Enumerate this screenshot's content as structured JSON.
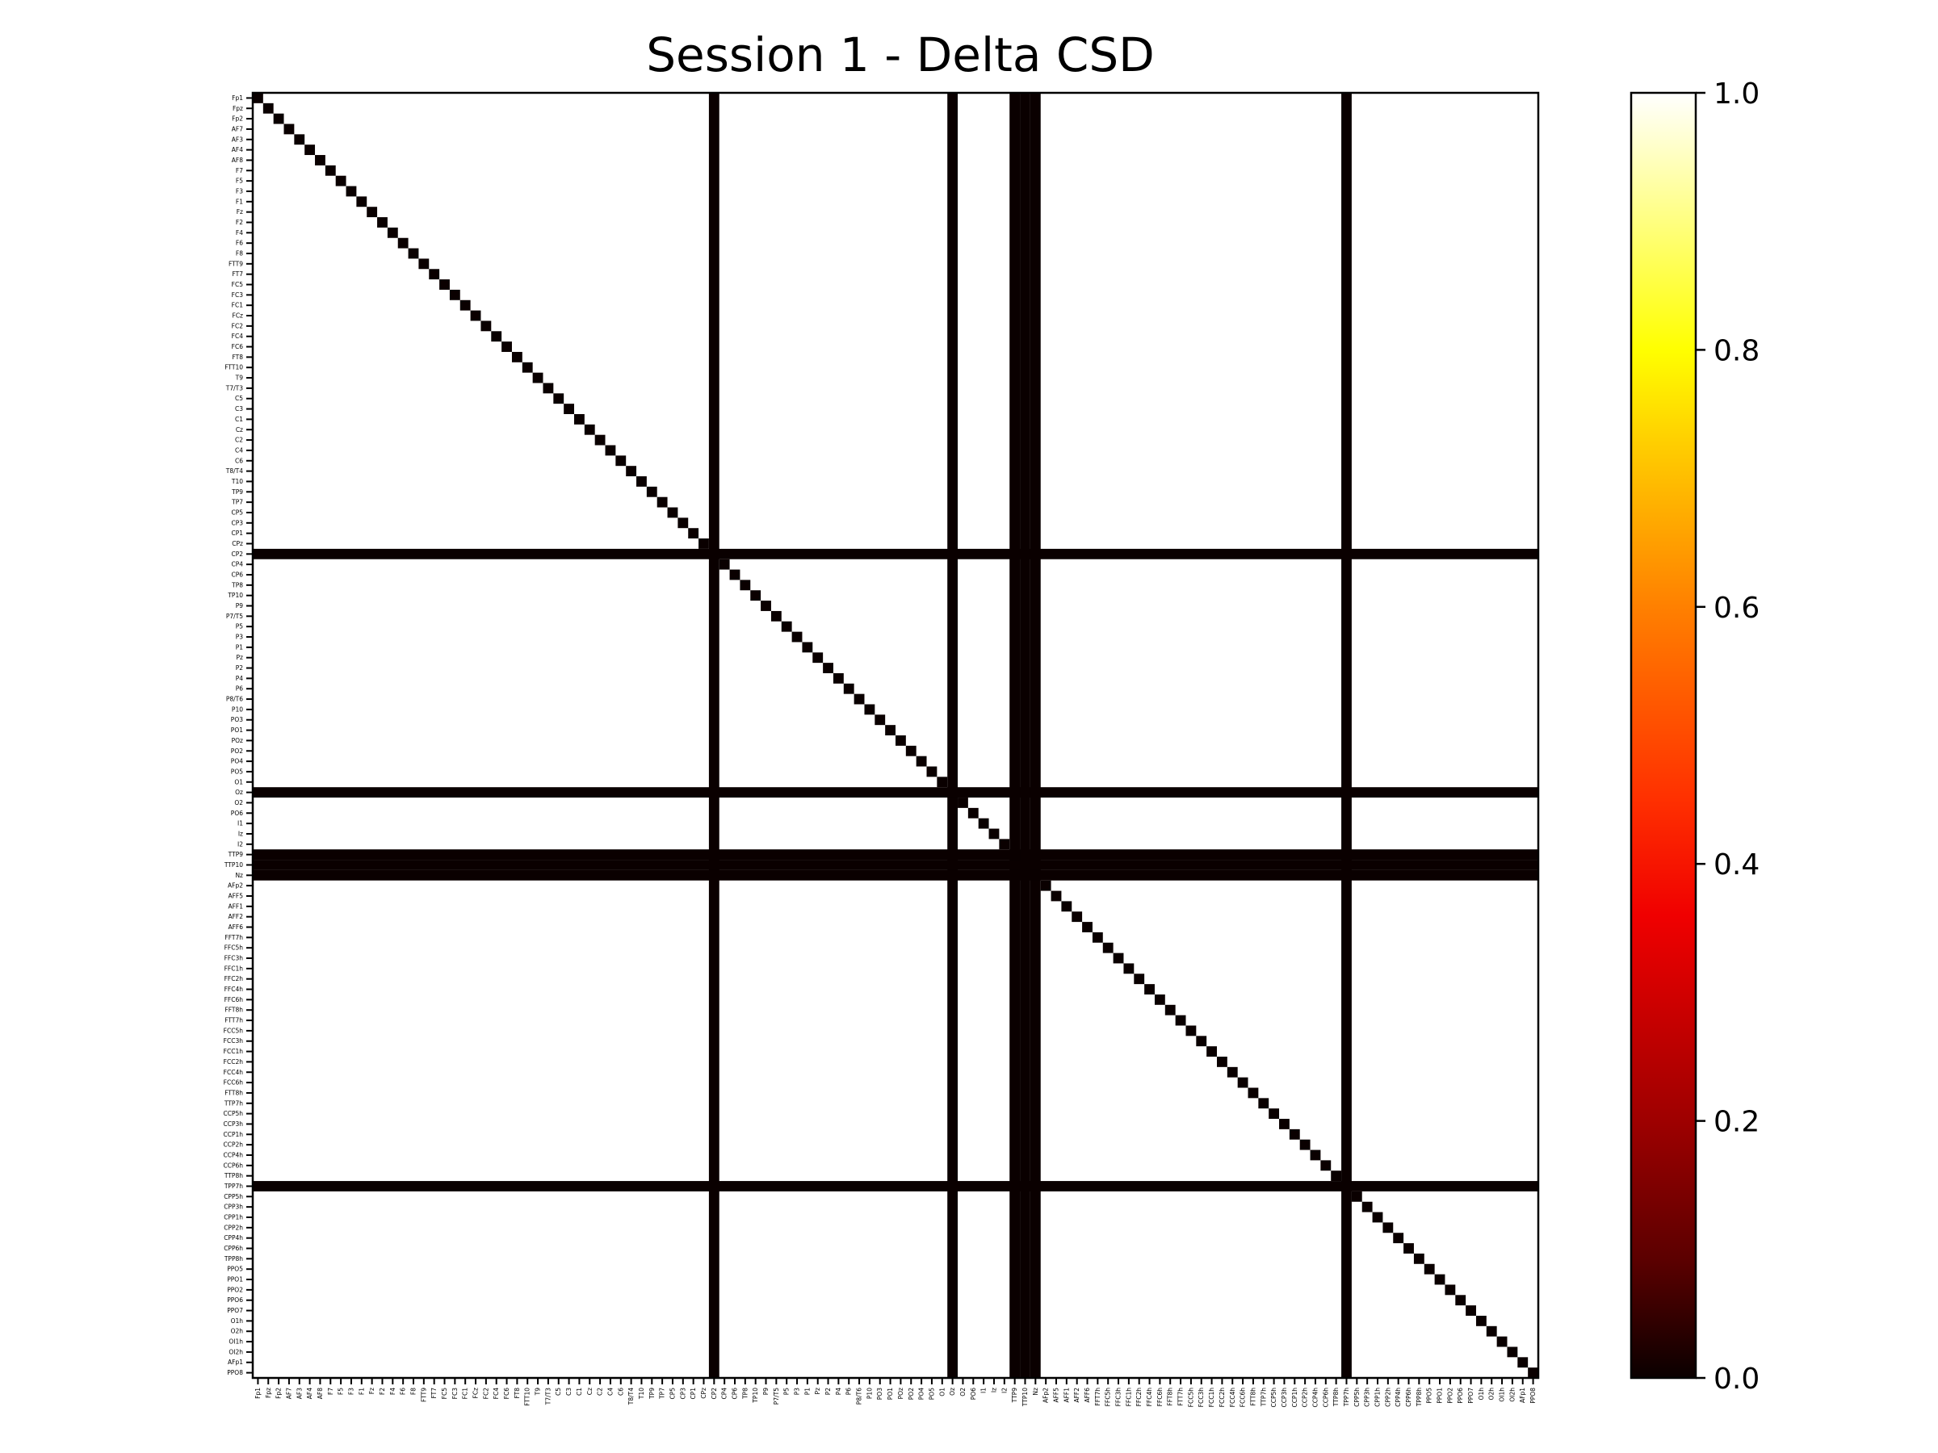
{
  "chart_data": {
    "type": "heatmap",
    "title": "Session 1 - Delta CSD",
    "colormap": "hot",
    "vmin": 0.0,
    "vmax": 1.0,
    "colorbar_ticks": [
      "0.0",
      "0.2",
      "0.4",
      "0.6",
      "0.8",
      "1.0"
    ],
    "colorbar_tick_values": [
      0.0,
      0.2,
      0.4,
      0.6,
      0.8,
      1.0
    ],
    "cell_value_default": 1.0,
    "cell_value_highlight": 0.0,
    "highlight_description": "diagonal and rows/columns with value 0",
    "zero_channels": [
      "CP2",
      "Oz",
      "TTP9",
      "TTP10",
      "Nz",
      "TPP7h"
    ],
    "channels": [
      "Fp1",
      "Fpz",
      "Fp2",
      "AF7",
      "AF3",
      "AF4",
      "AF8",
      "F7",
      "F5",
      "F3",
      "F1",
      "Fz",
      "F2",
      "F4",
      "F6",
      "F8",
      "FTT9",
      "FT7",
      "FC5",
      "FC3",
      "FC1",
      "FCz",
      "FC2",
      "FC4",
      "FC6",
      "FT8",
      "FTT10",
      "T9",
      "T7/T3",
      "C5",
      "C3",
      "C1",
      "Cz",
      "C2",
      "C4",
      "C6",
      "T8/T4",
      "T10",
      "TP9",
      "TP7",
      "CP5",
      "CP3",
      "CP1",
      "CPz",
      "CP2",
      "CP4",
      "CP6",
      "TP8",
      "TP10",
      "P9",
      "P7/T5",
      "P5",
      "P3",
      "P1",
      "Pz",
      "P2",
      "P4",
      "P6",
      "P8/T6",
      "P10",
      "PO3",
      "PO1",
      "POz",
      "PO2",
      "PO4",
      "PO5",
      "O1",
      "Oz",
      "O2",
      "PO6",
      "I1",
      "Iz",
      "I2",
      "TTP9",
      "TTP10",
      "Nz",
      "AFp2",
      "AFF5",
      "AFF1",
      "AFF2",
      "AFF6",
      "FFT7h",
      "FFC5h",
      "FFC3h",
      "FFC1h",
      "FFC2h",
      "FFC4h",
      "FFC6h",
      "FFT8h",
      "FTT7h",
      "FCC5h",
      "FCC3h",
      "FCC1h",
      "FCC2h",
      "FCC4h",
      "FCC6h",
      "FTT8h",
      "TTP7h",
      "CCP5h",
      "CCP3h",
      "CCP1h",
      "CCP2h",
      "CCP4h",
      "CCP6h",
      "TTP8h",
      "TPP7h",
      "CPP5h",
      "CPP3h",
      "CPP1h",
      "CPP2h",
      "CPP4h",
      "CPP6h",
      "TPP8h",
      "PPO5",
      "PPO1",
      "PPO2",
      "PPO6",
      "PPO7",
      "O1h",
      "O2h",
      "OI1h",
      "OI2h",
      "AFp1",
      "PPO8"
    ]
  },
  "colors": {
    "low": "#0a0000",
    "high": "#ffffff",
    "axis": "#000000"
  }
}
